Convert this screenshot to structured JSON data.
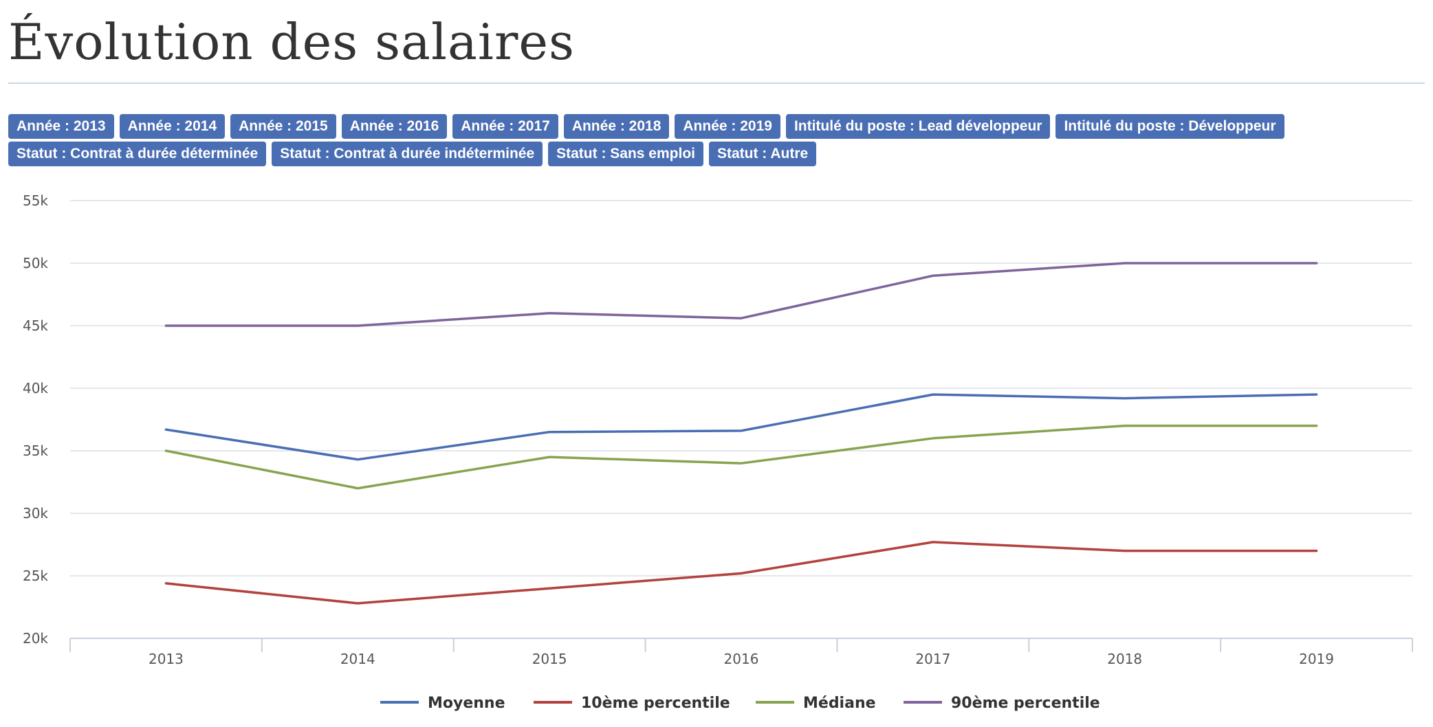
{
  "page": {
    "title": "Évolution des salaires"
  },
  "filters": {
    "row1": [
      "Année : 2013",
      "Année : 2014",
      "Année : 2015",
      "Année : 2016",
      "Année : 2017",
      "Année : 2018",
      "Année : 2019",
      "Intitulé du poste : Lead développeur",
      "Intitulé du poste : Développeur"
    ],
    "row2": [
      "Statut : Contrat à durée déterminée",
      "Statut : Contrat à durée indéterminée",
      "Statut : Sans emploi",
      "Statut : Autre"
    ]
  },
  "colors": {
    "tag_bg": "#4a6eb3",
    "grid": "#e3e6ec",
    "axis": "#c7d0dc"
  },
  "chart_data": {
    "type": "line",
    "categories": [
      "2013",
      "2014",
      "2015",
      "2016",
      "2017",
      "2018",
      "2019"
    ],
    "ylim": [
      20000,
      55000
    ],
    "yticks": [
      20000,
      25000,
      30000,
      35000,
      40000,
      45000,
      50000,
      55000
    ],
    "ytick_labels": [
      "20k",
      "25k",
      "30k",
      "35k",
      "40k",
      "45k",
      "50k",
      "55k"
    ],
    "grid": true,
    "legend_position": "bottom-center",
    "series": [
      {
        "name": "Moyenne",
        "color": "#4a6eb3",
        "values": [
          36700,
          34300,
          36500,
          36600,
          39500,
          39200,
          39500
        ]
      },
      {
        "name": "10ème percentile",
        "color": "#b2423e",
        "values": [
          24400,
          22800,
          24000,
          25200,
          27700,
          27000,
          27000
        ]
      },
      {
        "name": "Médiane",
        "color": "#86a450",
        "values": [
          35000,
          32000,
          34500,
          34000,
          36000,
          37000,
          37000
        ]
      },
      {
        "name": "90ème percentile",
        "color": "#7f649c",
        "values": [
          45000,
          45000,
          46000,
          45600,
          49000,
          50000,
          50000
        ]
      }
    ]
  }
}
